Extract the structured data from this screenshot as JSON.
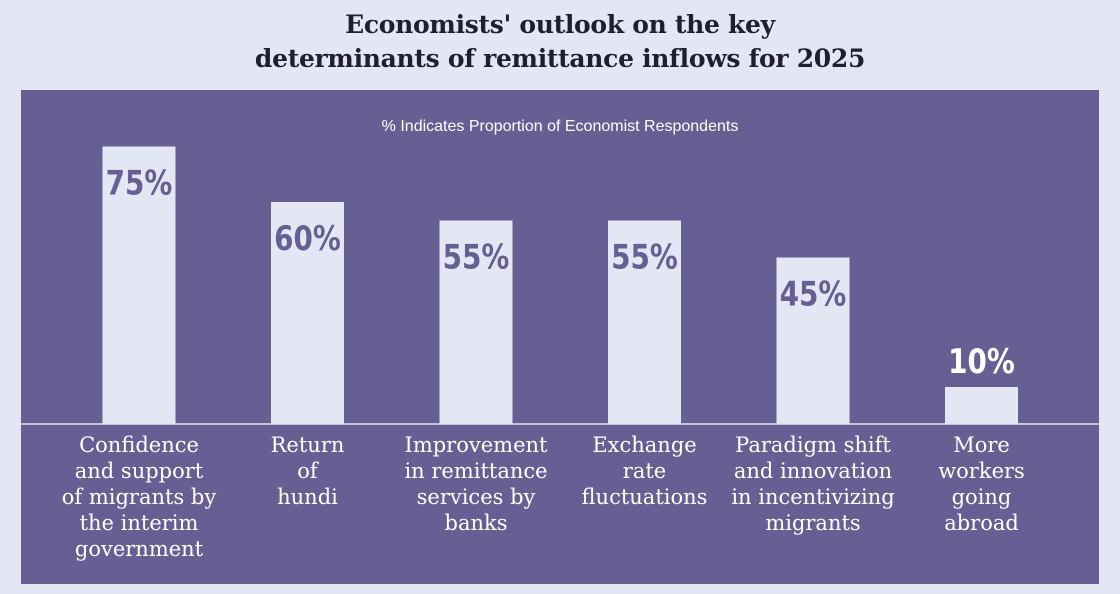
{
  "title_lines": [
    "Economists' outlook on the key",
    "determinants of remittance inflows for 2025"
  ],
  "subtitle": "% Indicates Proportion of Economist Respondents",
  "colors": {
    "background": "#e3e7f3",
    "panel": "#675f93",
    "bar": "#e3e7f3",
    "label_text": "#ffffff"
  },
  "chart_data": {
    "type": "bar",
    "title": "Economists' outlook on the key determinants of remittance inflows for 2025",
    "subtitle": "% Indicates Proportion of Economist Respondents",
    "categories": [
      "Confidence and support of migrants by the interim government",
      "Return of hundi",
      "Improvement in remittance services by banks",
      "Exchange rate fluctuations",
      "Paradigm shift and innovation in incentivizing migrants",
      "More workers going abroad"
    ],
    "category_label_lines": [
      [
        "Confidence",
        "and support",
        "of migrants by",
        "the interim",
        "government"
      ],
      [
        "Return",
        "of",
        "hundi"
      ],
      [
        "Improvement",
        "in remittance",
        "services by",
        "banks"
      ],
      [
        "Exchange",
        "rate",
        "fluctuations"
      ],
      [
        "Paradigm shift",
        "and innovation",
        "in incentivizing",
        "migrants"
      ],
      [
        "More",
        "workers",
        "going",
        "abroad"
      ]
    ],
    "values": [
      75,
      60,
      55,
      55,
      45,
      10
    ],
    "value_labels": [
      "75%",
      "60%",
      "55%",
      "55%",
      "45%",
      "10%"
    ],
    "ylim": [
      0,
      100
    ],
    "grid": false,
    "legend": "none"
  }
}
